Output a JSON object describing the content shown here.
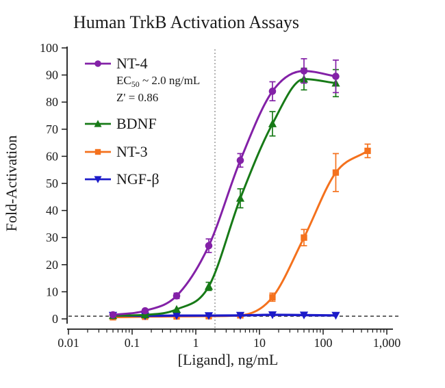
{
  "chart_data": {
    "type": "scatter",
    "subtype": "dose-response-curves",
    "title": "Human TrkB Activation Assays",
    "xlabel": "[Ligand], ng/mL",
    "ylabel": "Fold-Activation",
    "x_scale": "log",
    "xlim": [
      0.01,
      1000
    ],
    "ylim": [
      0,
      100
    ],
    "x_tick_values": [
      0.01,
      0.1,
      1,
      10,
      100,
      1000
    ],
    "x_tick_labels": [
      "0.01",
      "0.1",
      "1",
      "10",
      "100",
      "1,000"
    ],
    "y_tick_values": [
      0,
      10,
      20,
      30,
      40,
      50,
      60,
      70,
      80,
      90,
      100
    ],
    "grid": false,
    "legend_position": "upper-left",
    "baseline": {
      "y": 1,
      "style": "dashed",
      "color": "#444444"
    },
    "ec50_line": {
      "x": 2.0,
      "style": "dotted",
      "color": "#8a8a8a"
    },
    "annotations": {
      "ec50_pre": "EC",
      "ec50_sub": "50",
      "ec50_post": " ~ 2.0 ng/mL",
      "zprime": "Z' = 0.86"
    },
    "series": [
      {
        "id": "nt4",
        "name": "NT-4",
        "color": "#8321A7",
        "marker": "circle",
        "x": [
          0.05,
          0.16,
          0.5,
          1.6,
          5,
          16,
          50,
          158
        ],
        "y": [
          1.5,
          3,
          8.5,
          27,
          58.5,
          84,
          91.5,
          89.5
        ],
        "err": [
          0,
          0,
          1,
          2.5,
          2.5,
          3.5,
          4.5,
          6
        ]
      },
      {
        "id": "bdnf",
        "name": "BDNF",
        "color": "#177A17",
        "marker": "triangle-up",
        "x": [
          0.05,
          0.16,
          0.5,
          1.6,
          5,
          16,
          50,
          158
        ],
        "y": [
          1.2,
          1.5,
          3.5,
          12,
          44.5,
          72,
          88.5,
          87
        ],
        "err": [
          0,
          0,
          0,
          1.5,
          3.5,
          4.5,
          4,
          5
        ]
      },
      {
        "id": "nt3",
        "name": "NT-3",
        "color": "#F4711D",
        "marker": "square",
        "x": [
          0.05,
          0.16,
          0.5,
          1.6,
          5,
          16,
          50,
          158,
          500
        ],
        "y": [
          0.6,
          0.8,
          0.9,
          1,
          1.3,
          8,
          30,
          54,
          62
        ],
        "err": [
          0,
          0,
          0,
          0,
          0,
          1.5,
          3,
          7,
          2.5
        ]
      },
      {
        "id": "ngfb",
        "name": "NGF-β",
        "color": "#1C1BC9",
        "marker": "triangle-down",
        "x": [
          0.05,
          0.16,
          0.5,
          1.6,
          5,
          16,
          50,
          158
        ],
        "y": [
          1.3,
          1.1,
          1.2,
          1.2,
          1.3,
          1.5,
          1.4,
          1.3
        ],
        "err": [
          0,
          0,
          0,
          0,
          0,
          0,
          0,
          0
        ]
      }
    ]
  }
}
